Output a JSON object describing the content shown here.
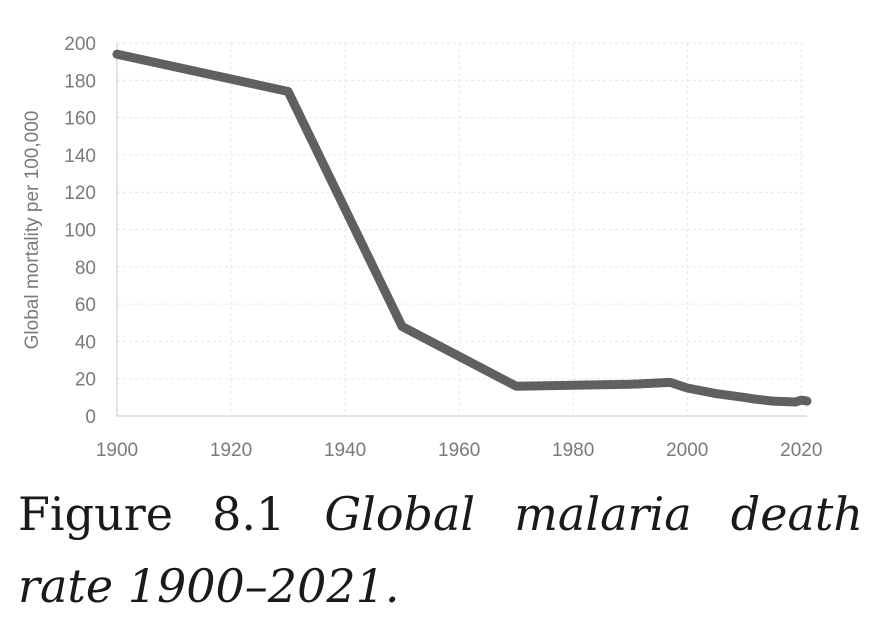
{
  "caption": {
    "number": "Figure 8.1",
    "title": "Global malaria death rate 1900–2021."
  },
  "chart_data": {
    "type": "line",
    "title": "",
    "xlabel": "",
    "ylabel": "Global mortality per 100,000",
    "xlim": [
      1900,
      2021
    ],
    "ylim": [
      0,
      200
    ],
    "xticks": [
      1900,
      1920,
      1940,
      1960,
      1980,
      2000,
      2020
    ],
    "yticks": [
      0,
      20,
      40,
      60,
      80,
      100,
      120,
      140,
      160,
      180,
      200
    ],
    "grid": true,
    "line_color": "#606060",
    "grid_color": "#e6e6e6",
    "series": [
      {
        "x": [
          1900,
          1930,
          1950,
          1970,
          1990,
          1997,
          2000,
          2005,
          2010,
          2012,
          2015,
          2019,
          2020,
          2021
        ],
        "y": [
          194,
          174,
          48,
          16,
          17,
          18,
          15,
          12,
          10,
          9,
          8,
          7.5,
          8.5,
          8
        ]
      }
    ]
  }
}
